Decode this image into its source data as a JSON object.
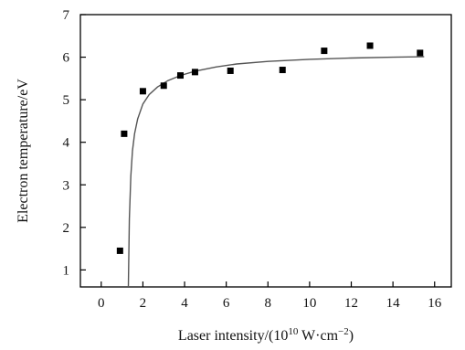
{
  "chart_data": {
    "type": "scatter",
    "xlabel_main": "Laser intensity/(10",
    "xlabel_sup": "10",
    "xlabel_unit": " W·cm",
    "xlabel_unit_sup": "−2",
    "xlabel_close": ")",
    "ylabel": "Electron temperature/eV",
    "xlim": [
      -1,
      16.8
    ],
    "ylim": [
      0.6,
      7
    ],
    "xticks": [
      "0",
      "2",
      "4",
      "6",
      "8",
      "10",
      "12",
      "14",
      "16"
    ],
    "yticks": [
      "1",
      "2",
      "3",
      "4",
      "5",
      "6",
      "7"
    ],
    "grid": false,
    "points": {
      "x": [
        0.9,
        1.1,
        2.0,
        3.0,
        3.8,
        4.5,
        6.2,
        8.7,
        10.7,
        12.9,
        15.3
      ],
      "y": [
        1.45,
        4.2,
        5.2,
        5.33,
        5.57,
        5.65,
        5.68,
        5.7,
        6.15,
        6.27,
        6.1
      ]
    },
    "fit_curve": {
      "x": [
        1.3,
        1.35,
        1.42,
        1.5,
        1.6,
        1.75,
        2.0,
        2.3,
        2.7,
        3.2,
        3.8,
        4.5,
        5.5,
        6.5,
        8,
        10,
        12,
        14,
        15.5
      ],
      "y": [
        0.6,
        2.2,
        3.2,
        3.8,
        4.2,
        4.55,
        4.9,
        5.12,
        5.3,
        5.45,
        5.57,
        5.67,
        5.77,
        5.84,
        5.9,
        5.95,
        5.98,
        6.0,
        6.01
      ]
    },
    "colors": {
      "marker": "#000000",
      "curve": "#555555",
      "axis": "#000000"
    }
  }
}
